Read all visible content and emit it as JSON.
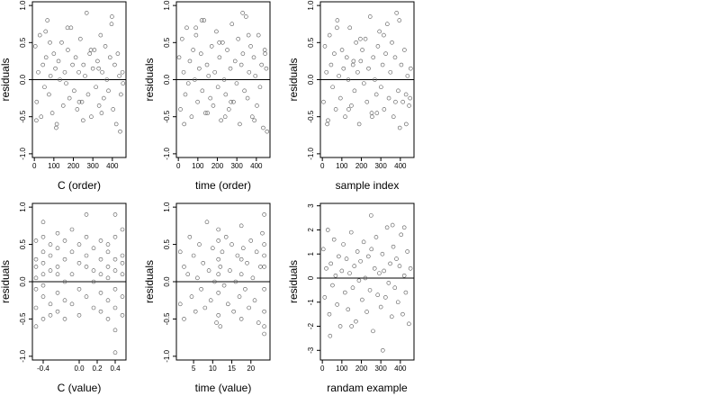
{
  "chart_data": [
    {
      "type": "scatter",
      "xlabel": "C (order)",
      "ylabel": "residuals",
      "xlim": [
        -10,
        470
      ],
      "ylim": [
        -1.05,
        1.05
      ],
      "xticks": [
        0,
        100,
        200,
        300,
        400
      ],
      "yticks": [
        -1.0,
        -0.5,
        0.0,
        0.5,
        1.0
      ],
      "yticklabels": [
        "-1.0",
        "-0.5",
        "0.0",
        "0.5",
        "1.0"
      ],
      "hline": 0,
      "x": [
        5,
        12,
        20,
        28,
        35,
        44,
        52,
        60,
        67,
        75,
        83,
        92,
        100,
        108,
        115,
        124,
        131,
        140,
        148,
        156,
        163,
        172,
        180,
        188,
        196,
        204,
        212,
        220,
        228,
        236,
        244,
        252,
        260,
        268,
        276,
        284,
        292,
        300,
        308,
        316,
        324,
        332,
        340,
        348,
        356,
        364,
        372,
        380,
        388,
        396,
        404,
        412,
        420,
        428,
        436,
        444,
        452,
        10,
        58,
        112,
        170,
        230,
        290,
        345,
        398,
        440,
        80,
        250,
        330,
        455
      ],
      "y": [
        0.45,
        -0.3,
        0.1,
        0.6,
        -0.5,
        0.2,
        -0.1,
        0.3,
        0.8,
        -0.2,
        0.05,
        -0.45,
        0.35,
        0.15,
        -0.6,
        0.25,
        0.0,
        0.5,
        -0.35,
        0.1,
        -0.05,
        0.4,
        -0.25,
        0.7,
        0.2,
        -0.15,
        0.3,
        -0.4,
        0.1,
        0.55,
        -0.3,
        0.2,
        0.05,
        0.9,
        -0.2,
        0.35,
        -0.5,
        0.15,
        0.4,
        -0.1,
        0.25,
        -0.35,
        0.6,
        0.1,
        -0.25,
        0.45,
        0.0,
        -0.15,
        0.3,
        0.75,
        -0.4,
        0.2,
        -0.6,
        0.35,
        0.05,
        -0.2,
        0.1,
        -0.55,
        0.65,
        -0.65,
        0.7,
        -0.3,
        0.4,
        -0.45,
        0.85,
        -0.7,
        0.5,
        -0.55,
        0.15,
        -0.05
      ]
    },
    {
      "type": "scatter",
      "xlabel": "time (order)",
      "ylabel": "residuals",
      "xlim": [
        -10,
        470
      ],
      "ylim": [
        -1.05,
        1.05
      ],
      "xticks": [
        0,
        100,
        200,
        300,
        400
      ],
      "yticks": [
        -1.0,
        -0.5,
        0.0,
        0.5,
        1.0
      ],
      "yticklabels": [
        "-1.0",
        "-0.5",
        "0.0",
        "0.5",
        "1.0"
      ],
      "hline": 0,
      "x": [
        4,
        11,
        19,
        27,
        36,
        43,
        51,
        59,
        68,
        76,
        84,
        91,
        99,
        107,
        116,
        123,
        132,
        139,
        147,
        155,
        164,
        171,
        179,
        187,
        195,
        203,
        211,
        219,
        227,
        235,
        243,
        251,
        259,
        267,
        275,
        283,
        291,
        299,
        307,
        315,
        323,
        331,
        339,
        347,
        355,
        363,
        371,
        379,
        387,
        395,
        403,
        411,
        419,
        427,
        435,
        443,
        451,
        30,
        90,
        150,
        210,
        270,
        330,
        390,
        445,
        120,
        240,
        360,
        455
      ],
      "y": [
        0.3,
        -0.4,
        0.55,
        0.1,
        -0.2,
        0.7,
        -0.05,
        0.25,
        -0.5,
        0.4,
        0.0,
        0.6,
        -0.3,
        0.15,
        0.35,
        -0.15,
        0.8,
        -0.45,
        0.2,
        0.05,
        -0.25,
        0.45,
        -0.35,
        0.1,
        0.65,
        -0.1,
        0.3,
        -0.55,
        0.5,
        0.0,
        -0.2,
        0.4,
        -0.4,
        0.15,
        0.75,
        -0.3,
        0.25,
        -0.05,
        0.55,
        -0.6,
        0.2,
        0.35,
        -0.15,
        0.85,
        -0.25,
        0.1,
        0.45,
        -0.5,
        0.3,
        0.05,
        -0.35,
        0.6,
        -0.1,
        0.2,
        -0.65,
        0.4,
        0.15,
        -0.6,
        0.7,
        -0.45,
        0.5,
        -0.3,
        0.9,
        -0.55,
        0.35,
        0.8,
        -0.5,
        0.6,
        -0.7
      ]
    },
    {
      "type": "scatter",
      "xlabel": "sample index",
      "ylabel": "residuals",
      "xlim": [
        -10,
        470
      ],
      "ylim": [
        -1.05,
        1.05
      ],
      "xticks": [
        0,
        100,
        200,
        300,
        400
      ],
      "yticks": [
        -1.0,
        -0.5,
        0.0,
        0.5,
        1.0
      ],
      "yticklabels": [
        "-1.0",
        "-0.5",
        "0.0",
        "0.5",
        "1.0"
      ],
      "hline": 0,
      "x": [
        6,
        13,
        21,
        29,
        37,
        45,
        53,
        61,
        69,
        77,
        85,
        93,
        101,
        109,
        117,
        125,
        133,
        141,
        149,
        157,
        165,
        173,
        181,
        189,
        197,
        205,
        213,
        221,
        229,
        237,
        245,
        253,
        261,
        269,
        277,
        285,
        293,
        301,
        309,
        317,
        325,
        333,
        341,
        349,
        357,
        365,
        373,
        381,
        389,
        397,
        405,
        413,
        421,
        429,
        437,
        445,
        453,
        25,
        75,
        135,
        195,
        255,
        315,
        375,
        430,
        160,
        280,
        395,
        450
      ],
      "y": [
        -0.3,
        0.45,
        0.1,
        -0.55,
        0.6,
        0.2,
        -0.1,
        0.35,
        -0.4,
        0.8,
        0.05,
        -0.25,
        0.4,
        0.15,
        -0.5,
        0.3,
        0.0,
        0.7,
        -0.35,
        0.2,
        -0.15,
        0.5,
        0.1,
        -0.6,
        0.25,
        0.4,
        -0.05,
        0.55,
        -0.3,
        0.15,
        0.85,
        -0.45,
        0.3,
        0.0,
        -0.2,
        0.45,
        0.65,
        -0.1,
        0.2,
        -0.4,
        0.35,
        0.75,
        -0.25,
        0.1,
        0.5,
        -0.5,
        0.3,
        0.9,
        -0.15,
        -0.65,
        0.2,
        -0.3,
        0.4,
        -0.2,
        0.05,
        -0.35,
        0.15,
        -0.6,
        0.7,
        -0.4,
        0.55,
        -0.5,
        0.6,
        -0.3,
        -0.6,
        0.25,
        -0.45,
        0.8,
        -0.25
      ]
    },
    {
      "type": "scatter",
      "xlabel": "C (value)",
      "ylabel": "residuals",
      "xlim": [
        -0.52,
        0.52
      ],
      "ylim": [
        -1.05,
        1.05
      ],
      "xticks": [
        -0.4,
        0.0,
        0.2,
        0.4
      ],
      "xticklabels": [
        "-0.4",
        "0.0",
        "0.2",
        "0.4"
      ],
      "yticks": [
        -1.0,
        -0.5,
        0.0,
        0.5,
        1.0
      ],
      "yticklabels": [
        "-1.0",
        "-0.5",
        "0.0",
        "0.5",
        "1.0"
      ],
      "hline": 0,
      "x": [
        -0.48,
        -0.48,
        -0.48,
        -0.48,
        -0.48,
        -0.48,
        -0.48,
        -0.4,
        -0.4,
        -0.4,
        -0.4,
        -0.4,
        -0.4,
        -0.4,
        -0.4,
        -0.32,
        -0.32,
        -0.32,
        -0.32,
        -0.32,
        -0.24,
        -0.24,
        -0.24,
        -0.24,
        -0.24,
        -0.24,
        -0.16,
        -0.16,
        -0.16,
        -0.16,
        -0.16,
        -0.08,
        -0.08,
        -0.08,
        -0.08,
        0.0,
        0.0,
        0.0,
        0.0,
        0.08,
        0.08,
        0.08,
        0.08,
        0.08,
        0.16,
        0.16,
        0.16,
        0.16,
        0.24,
        0.24,
        0.24,
        0.24,
        0.24,
        0.32,
        0.32,
        0.32,
        0.32,
        0.32,
        0.32,
        0.4,
        0.4,
        0.4,
        0.4,
        0.4,
        0.4,
        0.4,
        0.4,
        0.48,
        0.48,
        0.48,
        0.48,
        0.48,
        0.48
      ],
      "y": [
        0.55,
        0.2,
        -0.1,
        -0.35,
        0.3,
        -0.6,
        0.05,
        0.8,
        0.4,
        0.1,
        -0.2,
        -0.5,
        0.25,
        -0.05,
        0.6,
        0.5,
        -0.3,
        0.15,
        -0.45,
        0.35,
        0.65,
        0.2,
        -0.15,
        -0.4,
        0.1,
        0.45,
        0.3,
        -0.25,
        0.55,
        0.0,
        -0.5,
        0.4,
        0.1,
        -0.3,
        0.7,
        0.25,
        -0.1,
        0.5,
        -0.45,
        0.6,
        0.2,
        -0.2,
        0.35,
        0.9,
        0.15,
        -0.35,
        0.45,
        0.0,
        0.55,
        -0.15,
        0.3,
        -0.4,
        0.1,
        0.5,
        0.2,
        -0.25,
        0.4,
        -0.5,
        0.05,
        0.9,
        0.6,
        0.3,
        -0.1,
        -0.35,
        0.15,
        -0.65,
        -0.95,
        0.7,
        0.35,
        -0.2,
        0.1,
        -0.45,
        0.25
      ]
    },
    {
      "type": "scatter",
      "xlabel": "time (value)",
      "ylabel": "residuals",
      "xlim": [
        0.5,
        25
      ],
      "ylim": [
        -1.05,
        1.05
      ],
      "xticks": [
        5,
        10,
        15,
        20
      ],
      "yticks": [
        -1.0,
        -0.5,
        0.0,
        0.5,
        1.0
      ],
      "yticklabels": [
        "-1.0",
        "-0.5",
        "0.0",
        "0.5",
        "1.0"
      ],
      "hline": 0,
      "x": [
        1.5,
        1.5,
        2.5,
        2.5,
        3.5,
        4,
        4.5,
        5,
        5.5,
        6,
        6.5,
        7,
        7.5,
        8,
        8.5,
        9,
        9.5,
        10,
        10.5,
        11,
        11.5,
        11.5,
        11.5,
        11.5,
        11.5,
        11.5,
        12,
        12,
        12.5,
        13,
        13.5,
        14,
        14.5,
        15,
        15.5,
        16,
        16.5,
        17,
        17.5,
        17.5,
        17.5,
        17.5,
        18,
        18.5,
        19,
        19.5,
        20,
        20.5,
        21,
        21.5,
        22,
        22.5,
        23,
        23.5,
        23.5,
        23.5,
        23.5,
        23.5,
        23.5,
        23.5,
        23.5
      ],
      "y": [
        0.4,
        -0.3,
        0.2,
        -0.5,
        0.1,
        0.6,
        -0.2,
        0.35,
        -0.4,
        0.05,
        0.5,
        -0.1,
        0.25,
        -0.35,
        0.8,
        0.15,
        -0.25,
        0.45,
        0.0,
        -0.55,
        0.7,
        0.3,
        -0.15,
        0.55,
        -0.45,
        0.1,
        0.2,
        -0.6,
        0.4,
        -0.05,
        0.6,
        -0.3,
        0.15,
        0.5,
        -0.4,
        0.0,
        0.35,
        -0.2,
        0.75,
        0.3,
        -0.5,
        0.1,
        0.45,
        -0.1,
        0.25,
        -0.35,
        0.55,
        0.05,
        -0.25,
        0.4,
        -0.55,
        0.2,
        0.65,
        0.9,
        0.5,
        0.2,
        -0.1,
        -0.4,
        -0.6,
        -0.7,
        0.35
      ]
    },
    {
      "type": "scatter",
      "xlabel": "randam example",
      "ylabel": "residuals",
      "xlim": [
        -10,
        470
      ],
      "ylim": [
        -3.4,
        3.1
      ],
      "xticks": [
        0,
        100,
        200,
        300,
        400
      ],
      "yticks": [
        -3,
        -2,
        -1,
        0,
        1,
        2,
        3
      ],
      "hline": 0,
      "x": [
        5,
        12,
        20,
        28,
        36,
        44,
        52,
        60,
        68,
        76,
        84,
        92,
        100,
        108,
        116,
        124,
        132,
        140,
        148,
        156,
        164,
        172,
        180,
        188,
        196,
        204,
        212,
        220,
        228,
        236,
        244,
        252,
        260,
        268,
        276,
        284,
        292,
        300,
        308,
        316,
        324,
        332,
        340,
        348,
        356,
        364,
        372,
        380,
        388,
        396,
        404,
        412,
        420,
        428,
        436,
        444,
        452,
        250,
        310,
        40,
        150,
        360,
        420
      ],
      "y": [
        1.2,
        -0.8,
        0.4,
        2.0,
        -1.5,
        0.6,
        -0.3,
        1.6,
        0.1,
        -1.1,
        0.9,
        -2.0,
        0.3,
        1.4,
        -0.6,
        0.8,
        -1.3,
        0.2,
        1.9,
        -0.4,
        0.5,
        -1.8,
        1.1,
        -0.1,
        0.7,
        -0.9,
        1.5,
        0.0,
        -1.4,
        0.9,
        -0.5,
        1.2,
        -2.2,
        0.4,
        1.7,
        -0.7,
        0.2,
        -1.2,
        1.0,
        0.3,
        -0.8,
        2.1,
        -0.2,
        0.6,
        -1.6,
        1.3,
        -0.4,
        0.8,
        -1.0,
        0.5,
        1.8,
        -1.5,
        0.1,
        -0.6,
        1.1,
        -1.9,
        0.4,
        2.6,
        -3.0,
        -2.4,
        -2.0,
        2.2,
        2.1
      ]
    }
  ]
}
